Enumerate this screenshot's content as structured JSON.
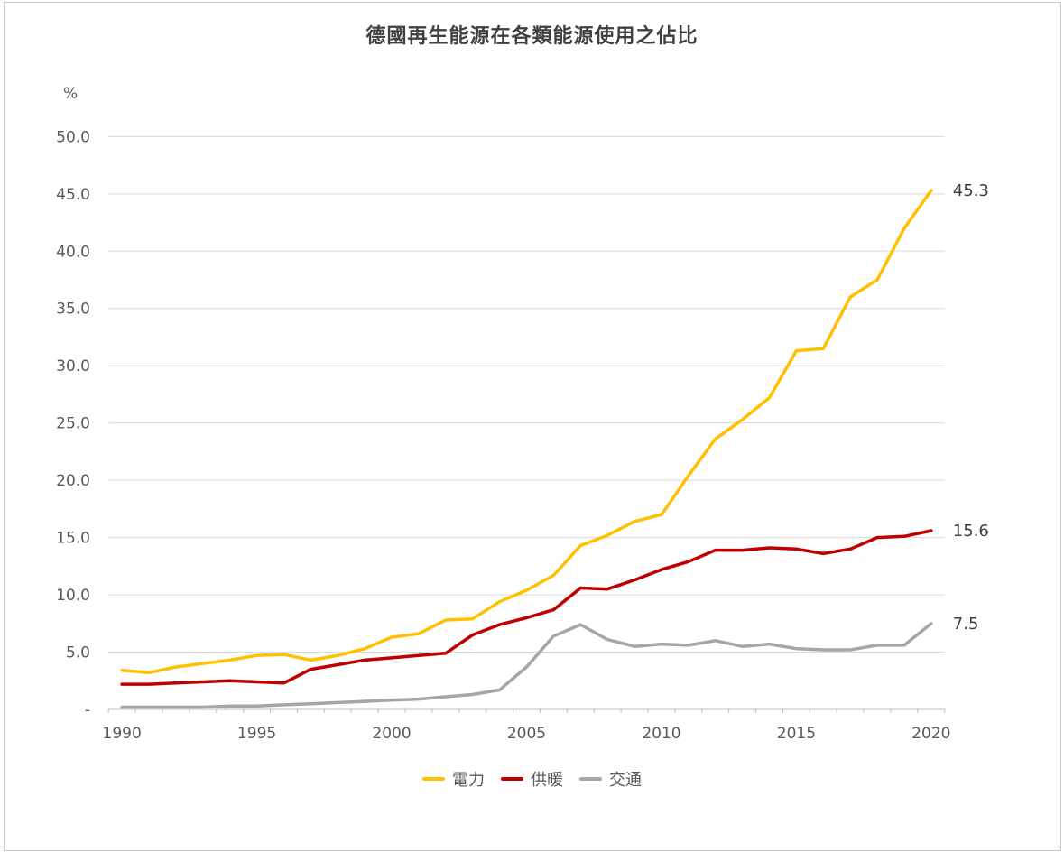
{
  "title": "德國再生能源在各類能源使用之佔比",
  "y_axis": {
    "unit_label": "%",
    "tick_values": [
      50,
      45,
      40,
      35,
      30,
      25,
      20,
      15,
      10,
      5,
      0
    ],
    "tick_labels": [
      "50.0",
      "45.0",
      "40.0",
      "35.0",
      "30.0",
      "25.0",
      "20.0",
      "15.0",
      "10.0",
      "5.0",
      "-"
    ]
  },
  "x_axis": {
    "tick_labels": [
      "1990",
      "1995",
      "2000",
      "2005",
      "2010",
      "2015",
      "2020"
    ],
    "tick_years": [
      1990,
      1995,
      2000,
      2005,
      2010,
      2015,
      2020
    ]
  },
  "colors": {
    "electricity": "#FFC000",
    "heating": "#C00000",
    "transport": "#A6A6A6",
    "gridline": "#D9D9D9",
    "axis_line": "#BFBFBF",
    "axis_text": "#595959",
    "title_text": "#404040"
  },
  "chart_data": {
    "type": "line",
    "title": "德國再生能源在各類能源使用之佔比",
    "xlabel": "",
    "ylabel": "%",
    "ylim": [
      0,
      50
    ],
    "ytick_step": 5,
    "grid": true,
    "legend_position": "bottom",
    "x": [
      1990,
      1991,
      1992,
      1993,
      1994,
      1995,
      1996,
      1997,
      1998,
      1999,
      2000,
      2001,
      2002,
      2003,
      2004,
      2005,
      2006,
      2007,
      2008,
      2009,
      2010,
      2011,
      2012,
      2013,
      2014,
      2015,
      2016,
      2017,
      2018,
      2019,
      2020
    ],
    "series": [
      {
        "key": "electricity",
        "name": "電力",
        "color": "#FFC000",
        "end_label": "45.3",
        "values": [
          3.4,
          3.2,
          3.7,
          4.0,
          4.3,
          4.7,
          4.8,
          4.3,
          4.7,
          5.3,
          6.3,
          6.6,
          7.8,
          7.9,
          9.4,
          10.4,
          11.7,
          14.3,
          15.2,
          16.4,
          17.0,
          20.4,
          23.6,
          25.3,
          27.2,
          31.3,
          31.5,
          36.0,
          37.5,
          42.0,
          45.3
        ]
      },
      {
        "key": "heating",
        "name": "供暖",
        "color": "#C00000",
        "end_label": "15.6",
        "values": [
          2.2,
          2.2,
          2.3,
          2.4,
          2.5,
          2.4,
          2.3,
          3.5,
          3.9,
          4.3,
          4.5,
          4.7,
          4.9,
          6.5,
          7.4,
          8.0,
          8.7,
          10.6,
          10.5,
          11.3,
          12.2,
          12.9,
          13.9,
          13.9,
          14.1,
          14.0,
          13.6,
          14.0,
          15.0,
          15.1,
          15.6
        ]
      },
      {
        "key": "transport",
        "name": "交通",
        "color": "#A6A6A6",
        "end_label": "7.5",
        "values": [
          0.2,
          0.2,
          0.2,
          0.2,
          0.3,
          0.3,
          0.4,
          0.5,
          0.6,
          0.7,
          0.8,
          0.9,
          1.1,
          1.3,
          1.7,
          3.7,
          6.4,
          7.4,
          6.1,
          5.5,
          5.7,
          5.6,
          6.0,
          5.5,
          5.7,
          5.3,
          5.2,
          5.2,
          5.6,
          5.6,
          7.5
        ]
      }
    ]
  }
}
